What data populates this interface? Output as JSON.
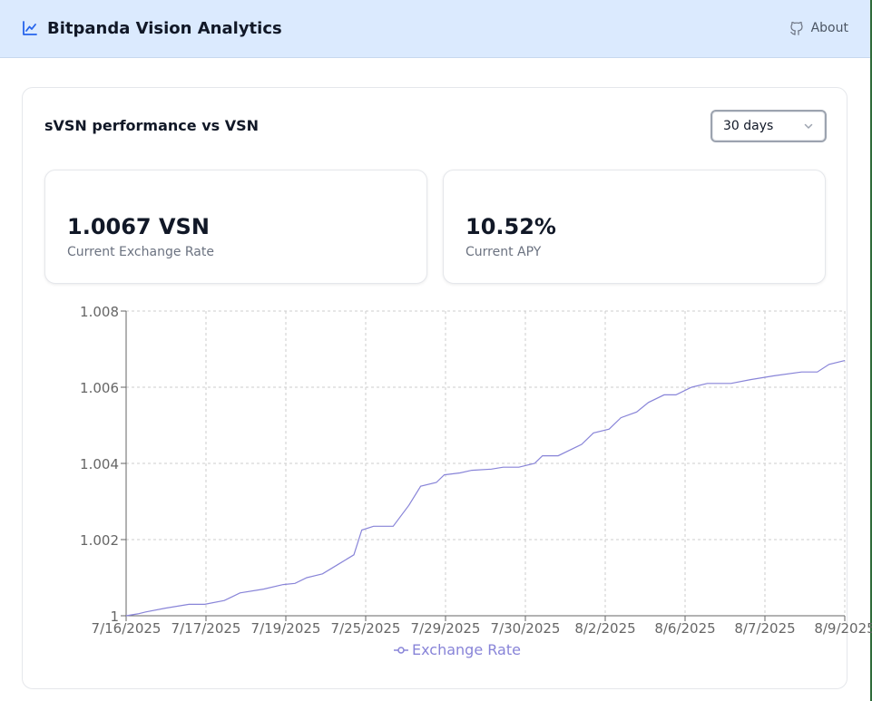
{
  "header": {
    "title": "Bitpanda Vision Analytics",
    "about_label": "About"
  },
  "card": {
    "title": "sVSN performance vs VSN",
    "range_select": {
      "value": "30 days"
    }
  },
  "stats": [
    {
      "value": "1.0067 VSN",
      "label": "Current Exchange Rate"
    },
    {
      "value": "10.52%",
      "label": "Current APY"
    }
  ],
  "colors": {
    "header_bg": "#dbeafe",
    "accent": "#2563eb",
    "series": "#8884d8"
  },
  "chart_data": {
    "type": "line",
    "title": "",
    "xlabel": "",
    "ylabel": "",
    "grid": true,
    "legend_position": "bottom",
    "x_ticks": [
      "7/16/2025",
      "7/17/2025",
      "7/19/2025",
      "7/25/2025",
      "7/29/2025",
      "7/30/2025",
      "8/2/2025",
      "8/6/2025",
      "8/7/2025",
      "8/9/2025"
    ],
    "y_ticks": [
      "1",
      "1.002",
      "1.004",
      "1.006",
      "1.008"
    ],
    "ylim": [
      1,
      1.008
    ],
    "series": [
      {
        "name": "Exchange Rate",
        "points": [
          [
            0,
            1.0
          ],
          [
            0.3,
            1.00005
          ],
          [
            0.5,
            1.0001
          ],
          [
            1.0,
            1.0002
          ],
          [
            1.6,
            1.0003
          ],
          [
            2.0,
            1.0003
          ],
          [
            2.5,
            1.0004
          ],
          [
            2.9,
            1.0006
          ],
          [
            3.5,
            1.0007
          ],
          [
            4.0,
            1.00082
          ],
          [
            4.3,
            1.00085
          ],
          [
            4.6,
            1.001
          ],
          [
            5.0,
            1.0011
          ],
          [
            5.4,
            1.00135
          ],
          [
            5.8,
            1.0016
          ],
          [
            6.0,
            1.00225
          ],
          [
            6.3,
            1.00235
          ],
          [
            6.8,
            1.00235
          ],
          [
            7.2,
            1.0029
          ],
          [
            7.5,
            1.0034
          ],
          [
            7.9,
            1.0035
          ],
          [
            8.1,
            1.0037
          ],
          [
            8.5,
            1.00375
          ],
          [
            8.8,
            1.00382
          ],
          [
            9.3,
            1.00385
          ],
          [
            9.6,
            1.0039
          ],
          [
            10.0,
            1.0039
          ],
          [
            10.4,
            1.004
          ],
          [
            10.6,
            1.0042
          ],
          [
            11.0,
            1.0042
          ],
          [
            11.3,
            1.00435
          ],
          [
            11.6,
            1.0045
          ],
          [
            11.9,
            1.0048
          ],
          [
            12.3,
            1.0049
          ],
          [
            12.6,
            1.0052
          ],
          [
            13.0,
            1.00535
          ],
          [
            13.3,
            1.0056
          ],
          [
            13.7,
            1.0058
          ],
          [
            14.0,
            1.0058
          ],
          [
            14.4,
            1.006
          ],
          [
            14.8,
            1.0061
          ],
          [
            15.4,
            1.0061
          ],
          [
            15.9,
            1.0062
          ],
          [
            16.5,
            1.0063
          ],
          [
            17.2,
            1.0064
          ],
          [
            17.6,
            1.0064
          ],
          [
            17.9,
            1.0066
          ],
          [
            18.3,
            1.0067
          ]
        ]
      }
    ]
  }
}
